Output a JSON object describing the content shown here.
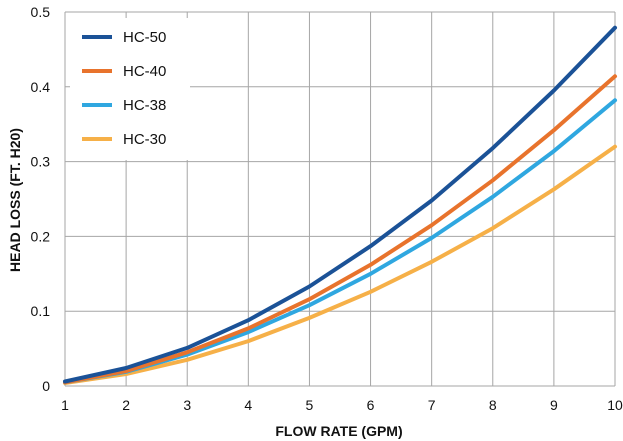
{
  "chart_data": {
    "type": "line",
    "xlabel": "FLOW RATE (GPM)",
    "ylabel": "HEAD LOSS (FT. H20)",
    "xlim": [
      1,
      10
    ],
    "ylim": [
      0,
      0.5
    ],
    "grid": true,
    "legend_position": "top-left",
    "x": [
      1,
      2,
      3,
      4,
      5,
      6,
      7,
      8,
      9,
      10
    ],
    "xticks": [
      "1",
      "2",
      "3",
      "4",
      "5",
      "6",
      "7",
      "8",
      "9",
      "10"
    ],
    "yticks": [
      "0",
      "0.1",
      "0.2",
      "0.3",
      "0.4",
      "0.5"
    ],
    "series": [
      {
        "name": "HC-50",
        "color": "#1b5297",
        "values": [
          0.006,
          0.024,
          0.051,
          0.088,
          0.133,
          0.187,
          0.248,
          0.318,
          0.395,
          0.479
        ]
      },
      {
        "name": "HC-40",
        "color": "#e8732c",
        "values": [
          0.005,
          0.02,
          0.045,
          0.077,
          0.116,
          0.162,
          0.215,
          0.275,
          0.342,
          0.414
        ]
      },
      {
        "name": "HC-38",
        "color": "#2fa7e0",
        "values": [
          0.005,
          0.019,
          0.042,
          0.072,
          0.108,
          0.15,
          0.198,
          0.253,
          0.314,
          0.382
        ]
      },
      {
        "name": "HC-30",
        "color": "#f6b048",
        "values": [
          0.004,
          0.016,
          0.035,
          0.06,
          0.091,
          0.126,
          0.166,
          0.211,
          0.263,
          0.32
        ]
      }
    ]
  }
}
